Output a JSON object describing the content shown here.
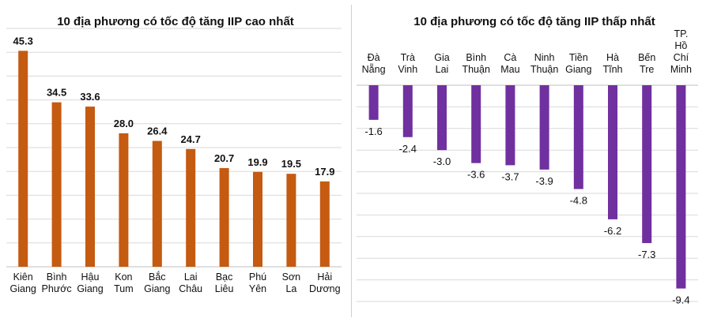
{
  "chart_data": [
    {
      "type": "bar",
      "title": "10 địa phương có tốc độ tăng IIP cao nhất",
      "categories": [
        [
          "Kiên",
          "Giang"
        ],
        [
          "Bình",
          "Phước"
        ],
        [
          "Hậu",
          "Giang"
        ],
        [
          "Kon",
          "Tum"
        ],
        [
          "Bắc",
          "Giang"
        ],
        [
          "Lai",
          "Châu"
        ],
        [
          "Bạc",
          "Liêu"
        ],
        [
          "Phú",
          "Yên"
        ],
        [
          "Sơn",
          "La"
        ],
        [
          "Hải",
          "Dương"
        ]
      ],
      "values": [
        45.3,
        34.5,
        33.6,
        28.0,
        26.4,
        24.7,
        20.7,
        19.9,
        19.5,
        17.9
      ],
      "value_labels": [
        "45.3",
        "34.5",
        "33.6",
        "28.0",
        "26.4",
        "24.7",
        "20.7",
        "19.9",
        "19.5",
        "17.9"
      ],
      "ylim": [
        0,
        50
      ],
      "grid_step": 5,
      "grid": true,
      "category_axis_position": "bottom",
      "bar_color": "#C55A11"
    },
    {
      "type": "bar",
      "title": "10 địa phương có tốc độ tăng IIP thấp nhất",
      "categories": [
        [
          "Đà",
          "Nẵng"
        ],
        [
          "Trà",
          "Vinh"
        ],
        [
          "Gia",
          "Lai"
        ],
        [
          "Bình",
          "Thuận"
        ],
        [
          "Cà",
          "Mau"
        ],
        [
          "Ninh",
          "Thuận"
        ],
        [
          "Tiền",
          "Giang"
        ],
        [
          "Hà",
          "Tĩnh"
        ],
        [
          "Bến",
          "Tre"
        ],
        [
          "TP.",
          "Hồ",
          "Chí",
          "Minh"
        ]
      ],
      "values": [
        -1.6,
        -2.4,
        -3.0,
        -3.6,
        -3.7,
        -3.9,
        -4.8,
        -6.2,
        -7.3,
        -9.4
      ],
      "value_labels": [
        "-1.6",
        "-2.4",
        "-3.0",
        "-3.6",
        "-3.7",
        "-3.9",
        "-4.8",
        "-6.2",
        "-7.3",
        "-9.4"
      ],
      "ylim": [
        -10,
        0
      ],
      "grid_step": 1,
      "grid": true,
      "category_axis_position": "top",
      "bar_color": "#7030A0"
    }
  ]
}
